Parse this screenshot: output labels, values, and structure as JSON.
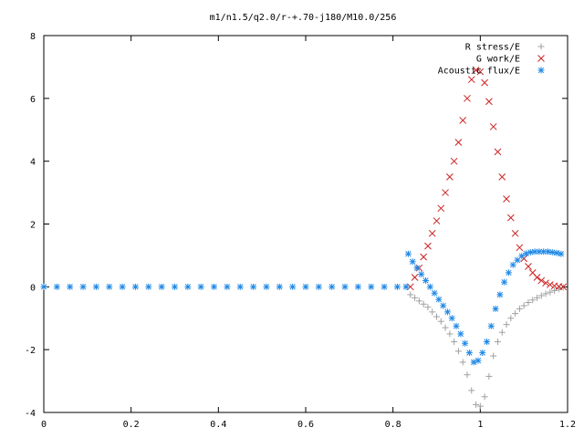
{
  "chart_data": {
    "type": "scatter",
    "title": "m1/n1.5/q2.0/r-+.70-j180/M10.0/256",
    "xlabel": "",
    "ylabel": "",
    "xlim": [
      0,
      1.2
    ],
    "ylim": [
      -4,
      8
    ],
    "x_ticks": [
      "0",
      "0.2",
      "0.4",
      "0.6",
      "0.8",
      "1",
      "1.2"
    ],
    "y_ticks": [
      "-4",
      "-2",
      "0",
      "2",
      "4",
      "6",
      "8"
    ],
    "legend_position": "top-right",
    "grid": false,
    "series": [
      {
        "name": "R stress/E",
        "color": "#a0a0a0",
        "marker": "plus",
        "points": [
          [
            0.84,
            -0.25
          ],
          [
            0.85,
            -0.35
          ],
          [
            0.86,
            -0.45
          ],
          [
            0.87,
            -0.55
          ],
          [
            0.88,
            -0.65
          ],
          [
            0.89,
            -0.8
          ],
          [
            0.9,
            -0.95
          ],
          [
            0.91,
            -1.1
          ],
          [
            0.92,
            -1.3
          ],
          [
            0.93,
            -1.5
          ],
          [
            0.94,
            -1.75
          ],
          [
            0.95,
            -2.05
          ],
          [
            0.96,
            -2.4
          ],
          [
            0.97,
            -2.8
          ],
          [
            0.98,
            -3.3
          ],
          [
            0.99,
            -3.75
          ],
          [
            1.0,
            -3.8
          ],
          [
            1.01,
            -3.5
          ],
          [
            1.02,
            -2.85
          ],
          [
            1.03,
            -2.2
          ],
          [
            1.04,
            -1.75
          ],
          [
            1.05,
            -1.45
          ],
          [
            1.06,
            -1.2
          ],
          [
            1.07,
            -1.0
          ],
          [
            1.08,
            -0.85
          ],
          [
            1.09,
            -0.7
          ],
          [
            1.1,
            -0.6
          ],
          [
            1.11,
            -0.5
          ],
          [
            1.12,
            -0.42
          ],
          [
            1.13,
            -0.35
          ],
          [
            1.14,
            -0.28
          ],
          [
            1.15,
            -0.22
          ],
          [
            1.16,
            -0.17
          ],
          [
            1.17,
            -0.12
          ],
          [
            1.18,
            -0.07
          ],
          [
            1.19,
            -0.02
          ]
        ]
      },
      {
        "name": "G work/E",
        "color": "#cc2222",
        "marker": "cross",
        "points": [
          [
            0.84,
            0.0
          ],
          [
            0.85,
            0.3
          ],
          [
            0.86,
            0.6
          ],
          [
            0.87,
            0.95
          ],
          [
            0.88,
            1.3
          ],
          [
            0.89,
            1.7
          ],
          [
            0.9,
            2.1
          ],
          [
            0.91,
            2.5
          ],
          [
            0.92,
            3.0
          ],
          [
            0.93,
            3.5
          ],
          [
            0.94,
            4.0
          ],
          [
            0.95,
            4.6
          ],
          [
            0.96,
            5.3
          ],
          [
            0.97,
            6.0
          ],
          [
            0.98,
            6.6
          ],
          [
            0.99,
            6.9
          ],
          [
            1.0,
            6.85
          ],
          [
            1.01,
            6.5
          ],
          [
            1.02,
            5.9
          ],
          [
            1.03,
            5.1
          ],
          [
            1.04,
            4.3
          ],
          [
            1.05,
            3.5
          ],
          [
            1.06,
            2.8
          ],
          [
            1.07,
            2.2
          ],
          [
            1.08,
            1.7
          ],
          [
            1.09,
            1.25
          ],
          [
            1.1,
            0.9
          ],
          [
            1.11,
            0.65
          ],
          [
            1.12,
            0.45
          ],
          [
            1.13,
            0.3
          ],
          [
            1.14,
            0.2
          ],
          [
            1.15,
            0.12
          ],
          [
            1.16,
            0.07
          ],
          [
            1.17,
            0.03
          ],
          [
            1.18,
            0.01
          ],
          [
            1.19,
            0.0
          ]
        ]
      },
      {
        "name": "Acoustic flux/E",
        "color": "#1e88e5",
        "marker": "star",
        "points": [
          [
            0.0,
            0.0
          ],
          [
            0.03,
            0.0
          ],
          [
            0.06,
            0.0
          ],
          [
            0.09,
            0.0
          ],
          [
            0.12,
            0.0
          ],
          [
            0.15,
            0.0
          ],
          [
            0.18,
            0.0
          ],
          [
            0.21,
            0.0
          ],
          [
            0.24,
            0.0
          ],
          [
            0.27,
            0.0
          ],
          [
            0.3,
            0.0
          ],
          [
            0.33,
            0.0
          ],
          [
            0.36,
            0.0
          ],
          [
            0.39,
            0.0
          ],
          [
            0.42,
            0.0
          ],
          [
            0.45,
            0.0
          ],
          [
            0.48,
            0.0
          ],
          [
            0.51,
            0.0
          ],
          [
            0.54,
            0.0
          ],
          [
            0.57,
            0.0
          ],
          [
            0.6,
            0.0
          ],
          [
            0.63,
            0.0
          ],
          [
            0.66,
            0.0
          ],
          [
            0.69,
            0.0
          ],
          [
            0.72,
            0.0
          ],
          [
            0.75,
            0.0
          ],
          [
            0.78,
            0.0
          ],
          [
            0.81,
            0.0
          ],
          [
            0.83,
            0.0
          ],
          [
            0.835,
            1.05
          ],
          [
            0.845,
            0.8
          ],
          [
            0.855,
            0.6
          ],
          [
            0.865,
            0.4
          ],
          [
            0.875,
            0.2
          ],
          [
            0.885,
            0.0
          ],
          [
            0.895,
            -0.2
          ],
          [
            0.905,
            -0.4
          ],
          [
            0.915,
            -0.6
          ],
          [
            0.925,
            -0.8
          ],
          [
            0.935,
            -1.0
          ],
          [
            0.945,
            -1.25
          ],
          [
            0.955,
            -1.5
          ],
          [
            0.965,
            -1.8
          ],
          [
            0.975,
            -2.1
          ],
          [
            0.985,
            -2.4
          ],
          [
            0.995,
            -2.35
          ],
          [
            1.005,
            -2.1
          ],
          [
            1.015,
            -1.75
          ],
          [
            1.025,
            -1.25
          ],
          [
            1.035,
            -0.7
          ],
          [
            1.045,
            -0.25
          ],
          [
            1.055,
            0.15
          ],
          [
            1.065,
            0.45
          ],
          [
            1.075,
            0.7
          ],
          [
            1.085,
            0.85
          ],
          [
            1.095,
            0.98
          ],
          [
            1.105,
            1.06
          ],
          [
            1.115,
            1.1
          ],
          [
            1.125,
            1.12
          ],
          [
            1.135,
            1.12
          ],
          [
            1.145,
            1.12
          ],
          [
            1.155,
            1.12
          ],
          [
            1.165,
            1.1
          ],
          [
            1.175,
            1.08
          ],
          [
            1.185,
            1.05
          ]
        ]
      }
    ]
  }
}
